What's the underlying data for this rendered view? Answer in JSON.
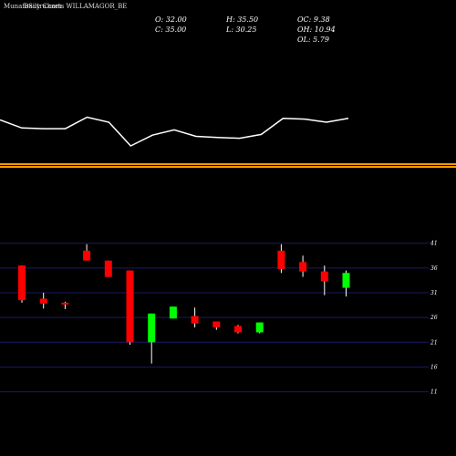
{
  "header": {
    "source": "MunafaSutra.com",
    "title": "Daily Charts WILLAMAGOR_BE"
  },
  "stats": {
    "open": "O: 32.00",
    "high": "H: 35.50",
    "oc": "OC: 9.38",
    "close": "C: 35.00",
    "low": "L: 30.25",
    "oh": "OH: 10.94",
    "ol": "OL: 5.79"
  },
  "colors": {
    "background": "#000000",
    "bull": "#00ff00",
    "bear": "#ff0000",
    "wick": "#ffffff",
    "separator": "#ff9900",
    "grid": "#1a1a66"
  },
  "chart_data": {
    "type": "candlestick",
    "ylim": [
      10,
      45
    ],
    "yticks": [
      41,
      36,
      31,
      26,
      21,
      16,
      11
    ],
    "ytick_labels": [
      "41",
      "36",
      "31",
      "26",
      "21",
      "16",
      "11"
    ],
    "candles": [
      {
        "open": 36.5,
        "close": 29.5,
        "high": 36.5,
        "low": 29.0
      },
      {
        "open": 29.8,
        "close": 28.8,
        "high": 31.0,
        "low": 27.8
      },
      {
        "open": 29.0,
        "close": 28.8,
        "high": 29.2,
        "low": 27.7
      },
      {
        "open": 39.5,
        "close": 37.5,
        "high": 40.8,
        "low": 37.5
      },
      {
        "open": 37.5,
        "close": 34.2,
        "high": 37.5,
        "low": 34.2
      },
      {
        "open": 35.5,
        "close": 21.0,
        "high": 35.5,
        "low": 20.5
      },
      {
        "open": 21.0,
        "close": 26.8,
        "high": 26.8,
        "low": 16.7
      },
      {
        "open": 25.8,
        "close": 28.2,
        "high": 28.2,
        "low": 25.8
      },
      {
        "open": 26.3,
        "close": 24.8,
        "high": 28.0,
        "low": 24.0
      },
      {
        "open": 25.2,
        "close": 24.0,
        "high": 25.2,
        "low": 23.5
      },
      {
        "open": 24.3,
        "close": 23.0,
        "high": 24.5,
        "low": 22.8
      },
      {
        "open": 23.0,
        "close": 25.0,
        "high": 25.0,
        "low": 22.8
      },
      {
        "open": 39.5,
        "close": 35.8,
        "high": 40.8,
        "low": 35.0
      },
      {
        "open": 37.2,
        "close": 35.3,
        "high": 38.5,
        "low": 34.2
      },
      {
        "open": 35.3,
        "close": 33.3,
        "high": 36.5,
        "low": 30.5
      },
      {
        "open": 32.0,
        "close": 35.0,
        "high": 35.5,
        "low": 30.25
      }
    ],
    "line_series": [
      0.68,
      0.47,
      0.45,
      0.45,
      0.75,
      0.62,
      0.0,
      0.28,
      0.42,
      0.25,
      0.22,
      0.2,
      0.3,
      0.72,
      0.7,
      0.62,
      0.72
    ]
  }
}
